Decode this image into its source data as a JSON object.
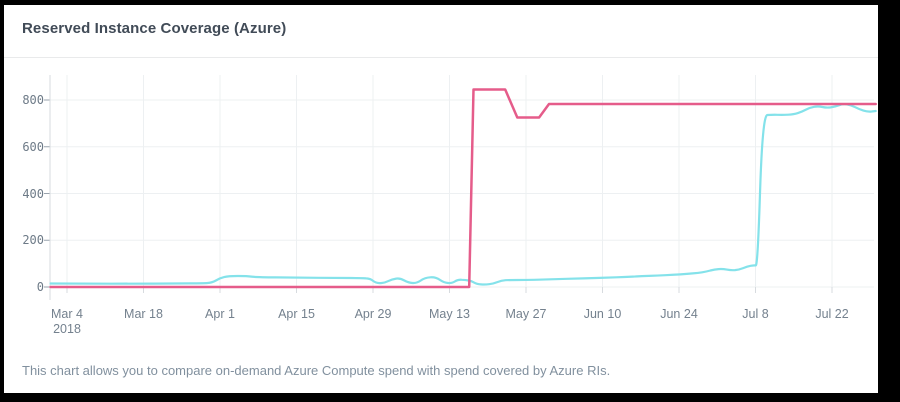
{
  "window": {
    "background": "#000000",
    "card_background": "#ffffff"
  },
  "header": {
    "title": "Reserved Instance Coverage (Azure)"
  },
  "footer": {
    "description": "This chart allows you to compare on-demand Azure Compute spend with spend covered by Azure RIs."
  },
  "chart_data": {
    "type": "line",
    "title": "Reserved Instance Coverage (Azure)",
    "xlabel": "",
    "ylabel": "",
    "x_unit": "date (days since Mar 4, 2018)",
    "xlim_days": [
      -3,
      148
    ],
    "ylim": [
      0,
      900
    ],
    "grid": true,
    "legend_position": "none",
    "grid_color": "#edf0f2",
    "axis_color": "#d7dbdf",
    "tick_color": "#99a3ad",
    "y_ticks": [
      0,
      200,
      400,
      600,
      800
    ],
    "x_ticks": [
      {
        "day": 0,
        "label": "Mar 4",
        "sublabel": "2018"
      },
      {
        "day": 14,
        "label": "Mar 18"
      },
      {
        "day": 28,
        "label": "Apr 1"
      },
      {
        "day": 42,
        "label": "Apr 15"
      },
      {
        "day": 56,
        "label": "Apr 29"
      },
      {
        "day": 70,
        "label": "May 13"
      },
      {
        "day": 84,
        "label": "May 27"
      },
      {
        "day": 98,
        "label": "Jun 10"
      },
      {
        "day": 112,
        "label": "Jun 24"
      },
      {
        "day": 126,
        "label": "Jul 8"
      },
      {
        "day": 140,
        "label": "Jul 22"
      }
    ],
    "series": [
      {
        "id": "cyan-line",
        "color": "#84e2ea",
        "stroke_width": 2.2,
        "smooth": true,
        "points": [
          [
            -3,
            15
          ],
          [
            4,
            14
          ],
          [
            12,
            14
          ],
          [
            20,
            15
          ],
          [
            25,
            16
          ],
          [
            26.5,
            18
          ],
          [
            28,
            38
          ],
          [
            29.5,
            47
          ],
          [
            33,
            47
          ],
          [
            34.5,
            42
          ],
          [
            42,
            40
          ],
          [
            50,
            39
          ],
          [
            54,
            38
          ],
          [
            55.5,
            36
          ],
          [
            56.5,
            17
          ],
          [
            58,
            16
          ],
          [
            59.5,
            34
          ],
          [
            61,
            38
          ],
          [
            62.5,
            18
          ],
          [
            64,
            16
          ],
          [
            65.5,
            40
          ],
          [
            67.5,
            43
          ],
          [
            69,
            18
          ],
          [
            70.5,
            16
          ],
          [
            71.5,
            32
          ],
          [
            73,
            30
          ],
          [
            74,
            26
          ],
          [
            75,
            12
          ],
          [
            76.5,
            10
          ],
          [
            78,
            14
          ],
          [
            79.5,
            28
          ],
          [
            81,
            30
          ],
          [
            84,
            30
          ],
          [
            87,
            32
          ],
          [
            90,
            34
          ],
          [
            93,
            36
          ],
          [
            96,
            38
          ],
          [
            99,
            40
          ],
          [
            102,
            43
          ],
          [
            105,
            46
          ],
          [
            108,
            49
          ],
          [
            111,
            52
          ],
          [
            113.5,
            56
          ],
          [
            115.5,
            60
          ],
          [
            117,
            66
          ],
          [
            118.5,
            75
          ],
          [
            120,
            78
          ],
          [
            121.5,
            71
          ],
          [
            123,
            74
          ],
          [
            124.5,
            88
          ],
          [
            125.7,
            93
          ],
          [
            126.4,
            92
          ],
          [
            127.3,
            735
          ],
          [
            129,
            737
          ],
          [
            131,
            736
          ],
          [
            133,
            738
          ],
          [
            134.5,
            750
          ],
          [
            136,
            768
          ],
          [
            137.5,
            774
          ],
          [
            139,
            766
          ],
          [
            140.5,
            771
          ],
          [
            142,
            784
          ],
          [
            143.5,
            778
          ],
          [
            145,
            760
          ],
          [
            146.5,
            749
          ],
          [
            148,
            753
          ]
        ]
      },
      {
        "id": "pink-line",
        "color": "#e55c8a",
        "stroke_width": 2.5,
        "smooth": false,
        "points": [
          [
            -3,
            0
          ],
          [
            30,
            0
          ],
          [
            60,
            0
          ],
          [
            73.6,
            0
          ],
          [
            74.4,
            845
          ],
          [
            80.2,
            845
          ],
          [
            82.4,
            725
          ],
          [
            86.4,
            725
          ],
          [
            88.2,
            783
          ],
          [
            100,
            783
          ],
          [
            120,
            783
          ],
          [
            140,
            783
          ],
          [
            148,
            783
          ]
        ]
      }
    ]
  }
}
